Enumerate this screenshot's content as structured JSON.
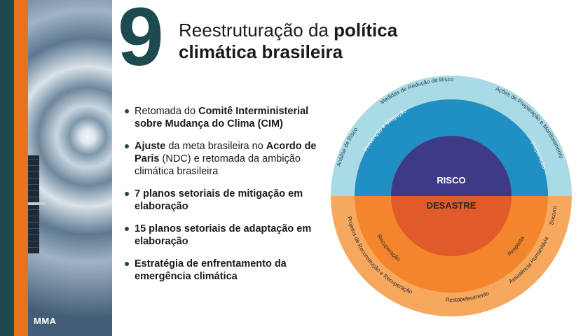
{
  "slide": {
    "number": "9",
    "title_normal": "Reestruturação da ",
    "title_bold_1": "política",
    "title_bold_2": "climática brasileira"
  },
  "sidebar": {
    "brand": "MMA"
  },
  "bullets": [
    {
      "parts": [
        "Retomada do ",
        "Comitê Interministerial sobre Mudança do Clima (CIM)"
      ]
    },
    {
      "parts": [
        "Ajuste",
        " da meta brasileira no ",
        "Acordo de Paris",
        " (NDC) e retomada da ambição climática brasileira"
      ]
    },
    {
      "parts": [
        "7 planos setoriais de mitigação em elaboração"
      ]
    },
    {
      "parts": [
        "15 planos setoriais de adaptação em elaboração"
      ]
    },
    {
      "parts": [
        "Estratégia de enfrentamento da emergência climática"
      ]
    }
  ],
  "diagram": {
    "center_top": "RISCO",
    "center_bottom": "DESASTRE",
    "outer_top": [
      "Análise de Risco",
      "Medidas de Redução de Risco",
      "Ações de Preparação e Monitoramento"
    ],
    "middle_top": [
      "Prevenção e Mitigação",
      "Preparação"
    ],
    "middle_bottom": [
      "Recuperação",
      "Resposta"
    ],
    "outer_bottom": [
      "Projetos de Reconstrução e Recuperação",
      "Restabelecimento",
      "Assistência Humanitária",
      "Socorro"
    ],
    "colors": {
      "outer_top": "#a8dbe5",
      "middle_top": "#1f8fc4",
      "inner_top": "#3f3a86",
      "outer_bottom": "#f6a85e",
      "middle_bottom": "#f3862c",
      "inner_bottom": "#e15a2a"
    }
  }
}
